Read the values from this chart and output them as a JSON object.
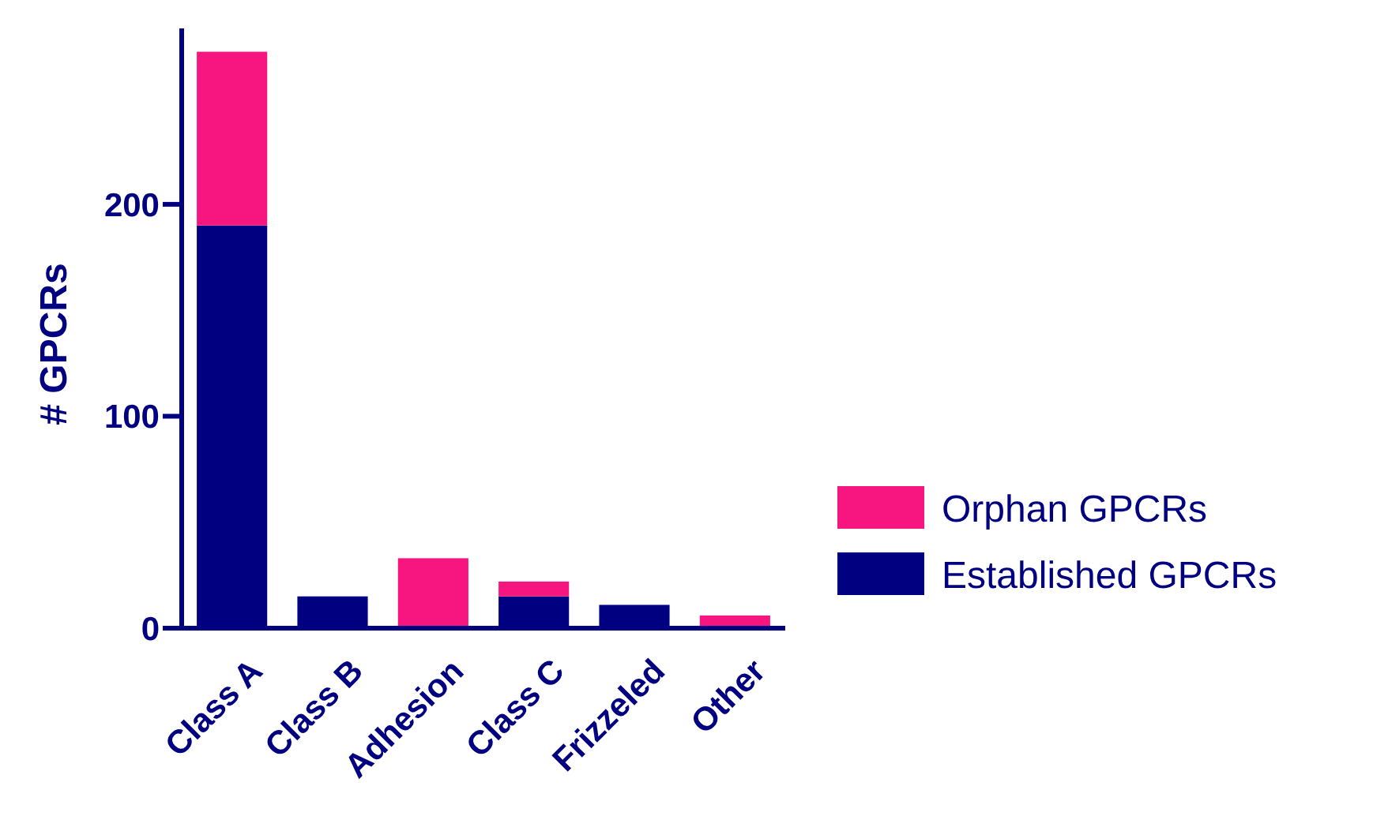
{
  "chart_data": {
    "type": "bar",
    "stacked": true,
    "ylabel": "# GPCRs",
    "categories": [
      "Class A",
      "Class B",
      "Adhesion",
      "Class C",
      "Frizzeled",
      "Other"
    ],
    "series": [
      {
        "name": "Established GPCRs",
        "color": "#000080",
        "values": [
          190,
          15,
          0,
          15,
          11,
          0
        ]
      },
      {
        "name": "Orphan GPCRs",
        "color": "#f7157f",
        "values": [
          82,
          0,
          33,
          7,
          0,
          6
        ]
      }
    ],
    "ylim": [
      0,
      283
    ],
    "yticks": [
      0,
      100,
      200
    ],
    "legend": "right",
    "grid": false
  }
}
